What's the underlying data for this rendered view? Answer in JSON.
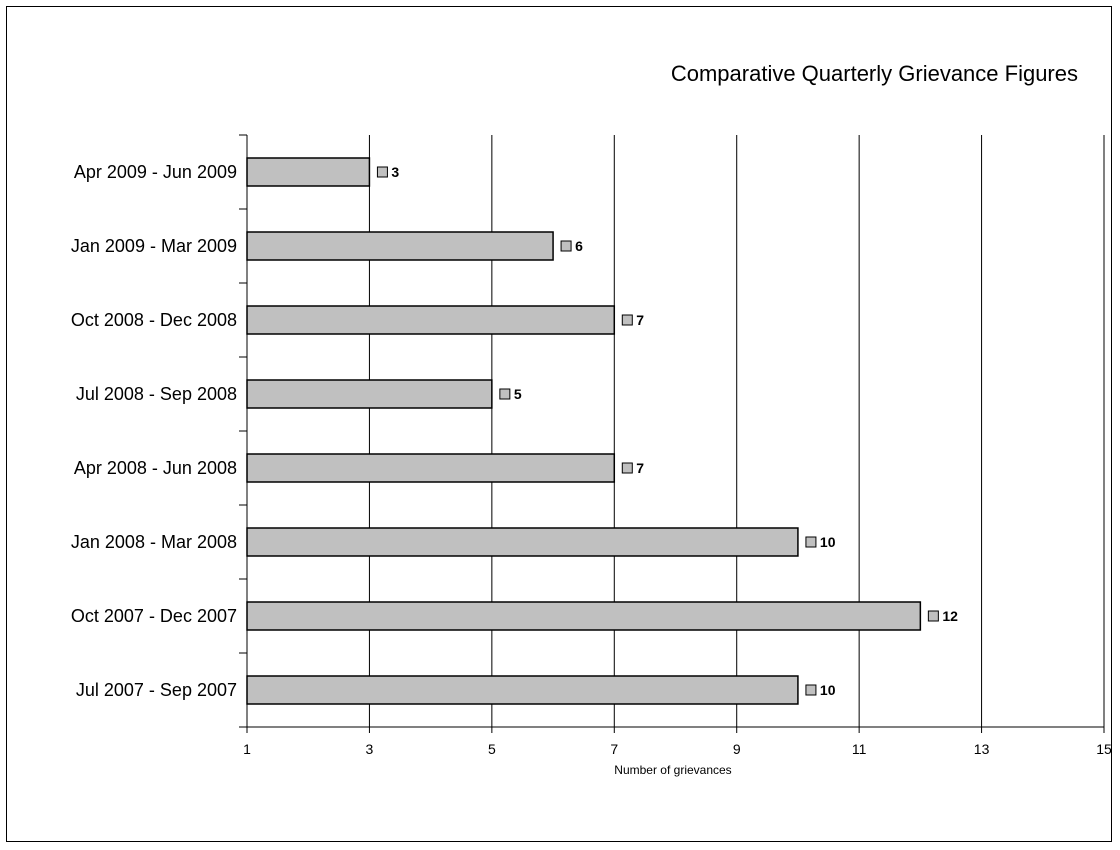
{
  "chart_data": {
    "type": "bar",
    "orientation": "horizontal",
    "title": "Comparative Quarterly Grievance Figures",
    "xlabel": "Number of grievances",
    "ylabel": "",
    "xlim": [
      1,
      15
    ],
    "xticks": [
      1,
      3,
      5,
      7,
      9,
      11,
      13,
      15
    ],
    "grid": "vertical",
    "categories": [
      "Apr 2009 - Jun 2009",
      "Jan 2009 - Mar 2009",
      "Oct 2008 - Dec 2008",
      "Jul 2008 - Sep 2008",
      "Apr 2008 - Jun 2008",
      "Jan 2008 - Mar 2008",
      "Oct 2007 - Dec 2007",
      "Jul 2007 - Sep 2007"
    ],
    "values": [
      3,
      6,
      7,
      5,
      7,
      10,
      12,
      10
    ],
    "bar_color": "#c0c0c0"
  }
}
